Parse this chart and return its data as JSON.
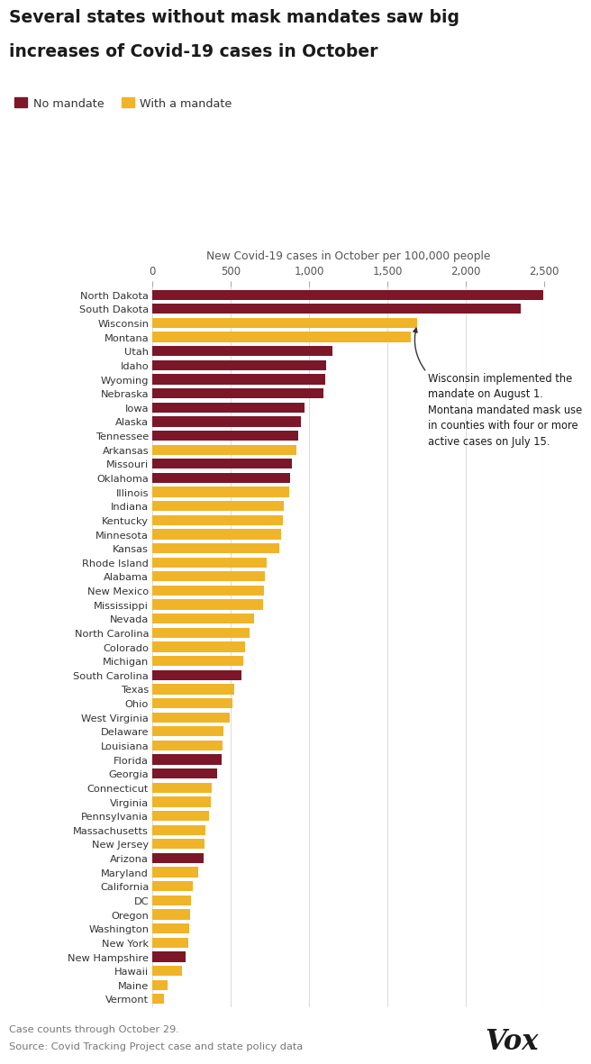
{
  "title_line1": "Several states without mask mandates saw big",
  "title_line2": "increases of Covid-19 cases in October",
  "xlabel": "New Covid-19 cases in October per 100,000 people",
  "footer1": "Case counts through October 29.",
  "footer2": "Source: Covid Tracking Project case and state policy data",
  "no_mandate_color": "#7B1728",
  "mandate_color": "#F0B429",
  "bg_color": "#ffffff",
  "xlim": [
    0,
    2500
  ],
  "xticks": [
    0,
    500,
    1000,
    1500,
    2000,
    2500
  ],
  "xtick_labels": [
    "0",
    "500",
    "1,000",
    "1,500",
    "2,000",
    "2,500"
  ],
  "annotation_text": "Wisconsin implemented the\nmandate on August 1.\nMontana mandated mask use\nin counties with four or more\nactive cases on July 15.",
  "states": [
    {
      "name": "North Dakota",
      "value": 2495,
      "mandate": false
    },
    {
      "name": "South Dakota",
      "value": 2350,
      "mandate": false
    },
    {
      "name": "Wisconsin",
      "value": 1690,
      "mandate": true
    },
    {
      "name": "Montana",
      "value": 1650,
      "mandate": true
    },
    {
      "name": "Utah",
      "value": 1150,
      "mandate": false
    },
    {
      "name": "Idaho",
      "value": 1110,
      "mandate": false
    },
    {
      "name": "Wyoming",
      "value": 1100,
      "mandate": false
    },
    {
      "name": "Nebraska",
      "value": 1090,
      "mandate": false
    },
    {
      "name": "Iowa",
      "value": 970,
      "mandate": false
    },
    {
      "name": "Alaska",
      "value": 950,
      "mandate": false
    },
    {
      "name": "Tennessee",
      "value": 930,
      "mandate": false
    },
    {
      "name": "Arkansas",
      "value": 920,
      "mandate": true
    },
    {
      "name": "Missouri",
      "value": 890,
      "mandate": false
    },
    {
      "name": "Oklahoma",
      "value": 880,
      "mandate": false
    },
    {
      "name": "Illinois",
      "value": 870,
      "mandate": true
    },
    {
      "name": "Indiana",
      "value": 840,
      "mandate": true
    },
    {
      "name": "Kentucky",
      "value": 830,
      "mandate": true
    },
    {
      "name": "Minnesota",
      "value": 820,
      "mandate": true
    },
    {
      "name": "Kansas",
      "value": 810,
      "mandate": true
    },
    {
      "name": "Rhode Island",
      "value": 730,
      "mandate": true
    },
    {
      "name": "Alabama",
      "value": 715,
      "mandate": true
    },
    {
      "name": "New Mexico",
      "value": 710,
      "mandate": true
    },
    {
      "name": "Mississippi",
      "value": 705,
      "mandate": true
    },
    {
      "name": "Nevada",
      "value": 650,
      "mandate": true
    },
    {
      "name": "North Carolina",
      "value": 620,
      "mandate": true
    },
    {
      "name": "Colorado",
      "value": 590,
      "mandate": true
    },
    {
      "name": "Michigan",
      "value": 580,
      "mandate": true
    },
    {
      "name": "South Carolina",
      "value": 570,
      "mandate": false
    },
    {
      "name": "Texas",
      "value": 520,
      "mandate": true
    },
    {
      "name": "Ohio",
      "value": 510,
      "mandate": true
    },
    {
      "name": "West Virginia",
      "value": 490,
      "mandate": true
    },
    {
      "name": "Delaware",
      "value": 450,
      "mandate": true
    },
    {
      "name": "Louisiana",
      "value": 445,
      "mandate": true
    },
    {
      "name": "Florida",
      "value": 440,
      "mandate": false
    },
    {
      "name": "Georgia",
      "value": 410,
      "mandate": false
    },
    {
      "name": "Connecticut",
      "value": 380,
      "mandate": true
    },
    {
      "name": "Virginia",
      "value": 370,
      "mandate": true
    },
    {
      "name": "Pennsylvania",
      "value": 360,
      "mandate": true
    },
    {
      "name": "Massachusetts",
      "value": 340,
      "mandate": true
    },
    {
      "name": "New Jersey",
      "value": 330,
      "mandate": true
    },
    {
      "name": "Arizona",
      "value": 325,
      "mandate": false
    },
    {
      "name": "Maryland",
      "value": 290,
      "mandate": true
    },
    {
      "name": "California",
      "value": 255,
      "mandate": true
    },
    {
      "name": "DC",
      "value": 245,
      "mandate": true
    },
    {
      "name": "Oregon",
      "value": 240,
      "mandate": true
    },
    {
      "name": "Washington",
      "value": 235,
      "mandate": true
    },
    {
      "name": "New York",
      "value": 230,
      "mandate": true
    },
    {
      "name": "New Hampshire",
      "value": 210,
      "mandate": false
    },
    {
      "name": "Hawaii",
      "value": 190,
      "mandate": true
    },
    {
      "name": "Maine",
      "value": 95,
      "mandate": true
    },
    {
      "name": "Vermont",
      "value": 75,
      "mandate": true
    }
  ]
}
